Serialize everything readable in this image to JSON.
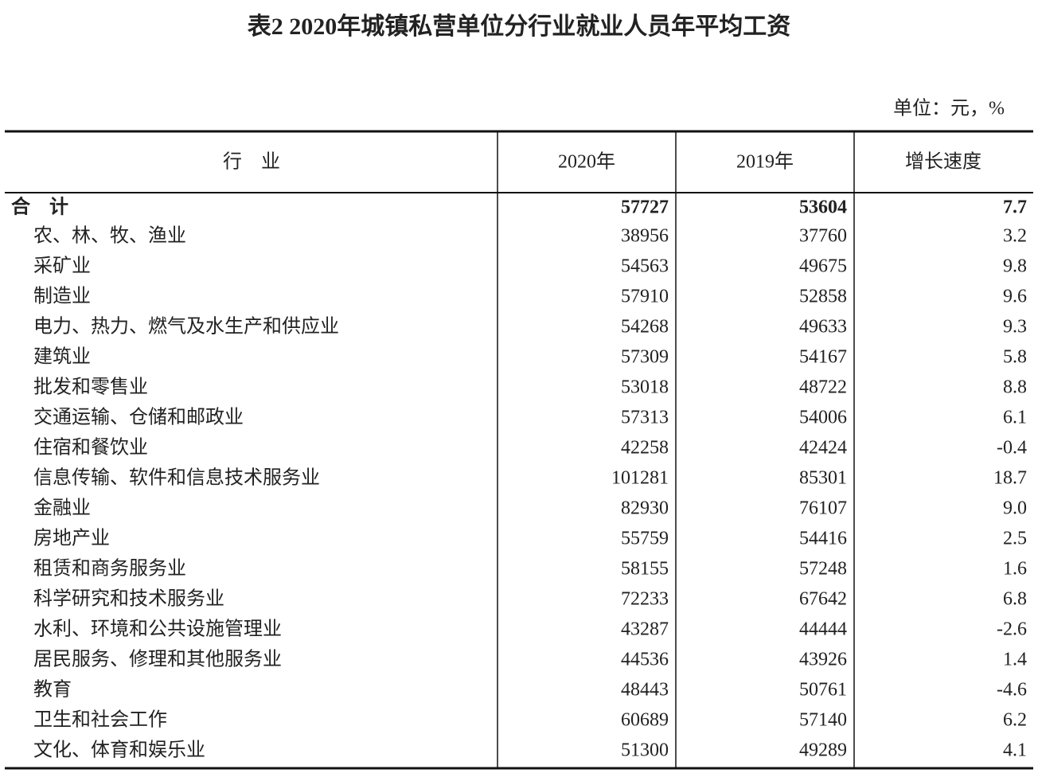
{
  "title": "表2 2020年城镇私营单位分行业就业人员年平均工资",
  "unit": "单位：元，%",
  "table": {
    "header": [
      "行　业",
      "2020年",
      "2019年",
      "增长速度"
    ],
    "total": [
      "合　计",
      "57727",
      "53604",
      "7.7"
    ],
    "rows": [
      [
        "农、林、牧、渔业",
        "38956",
        "37760",
        "3.2"
      ],
      [
        "采矿业",
        "54563",
        "49675",
        "9.8"
      ],
      [
        "制造业",
        "57910",
        "52858",
        "9.6"
      ],
      [
        "电力、热力、燃气及水生产和供应业",
        "54268",
        "49633",
        "9.3"
      ],
      [
        "建筑业",
        "57309",
        "54167",
        "5.8"
      ],
      [
        "批发和零售业",
        "53018",
        "48722",
        "8.8"
      ],
      [
        "交通运输、仓储和邮政业",
        "57313",
        "54006",
        "6.1"
      ],
      [
        "住宿和餐饮业",
        "42258",
        "42424",
        "-0.4"
      ],
      [
        "信息传输、软件和信息技术服务业",
        "101281",
        "85301",
        "18.7"
      ],
      [
        "金融业",
        "82930",
        "76107",
        "9.0"
      ],
      [
        "房地产业",
        "55759",
        "54416",
        "2.5"
      ],
      [
        "租赁和商务服务业",
        "58155",
        "57248",
        "1.6"
      ],
      [
        "科学研究和技术服务业",
        "72233",
        "67642",
        "6.8"
      ],
      [
        "水利、环境和公共设施管理业",
        "43287",
        "44444",
        "-2.6"
      ],
      [
        "居民服务、修理和其他服务业",
        "44536",
        "43926",
        "1.4"
      ],
      [
        "教育",
        "48443",
        "50761",
        "-4.6"
      ],
      [
        "卫生和社会工作",
        "60689",
        "57140",
        "6.2"
      ],
      [
        "文化、体育和娱乐业",
        "51300",
        "49289",
        "4.1"
      ]
    ]
  }
}
